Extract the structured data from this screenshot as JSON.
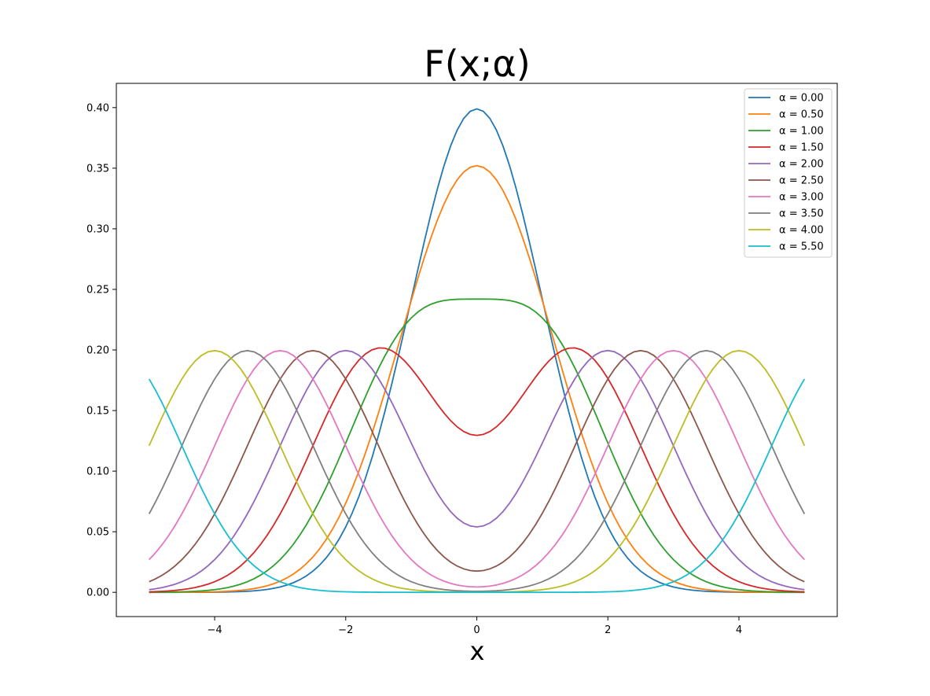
{
  "chart_data": {
    "type": "line",
    "title": "F(x;α)",
    "xlabel": "x",
    "ylabel": "",
    "xlim": [
      -5.5,
      5.5
    ],
    "ylim": [
      -0.02,
      0.42
    ],
    "xticks": [
      -4,
      -2,
      0,
      2,
      4
    ],
    "xtick_labels": [
      "−4",
      "−2",
      "0",
      "2",
      "4"
    ],
    "yticks": [
      0.0,
      0.05,
      0.1,
      0.15,
      0.2,
      0.25,
      0.3,
      0.35,
      0.4
    ],
    "ytick_labels": [
      "0.00",
      "0.05",
      "0.10",
      "0.15",
      "0.20",
      "0.25",
      "0.30",
      "0.35",
      "0.40"
    ],
    "grid": false,
    "legend_position": "top-right",
    "x_range": [
      -5,
      5
    ],
    "series": [
      {
        "name": "α = 0.00",
        "alpha": 0.0,
        "color": "#1f77b4"
      },
      {
        "name": "α = 0.50",
        "alpha": 0.5,
        "color": "#ff7f0e"
      },
      {
        "name": "α = 1.00",
        "alpha": 1.0,
        "color": "#2ca02c"
      },
      {
        "name": "α = 1.50",
        "alpha": 1.5,
        "color": "#d62728"
      },
      {
        "name": "α = 2.00",
        "alpha": 2.0,
        "color": "#9467bd"
      },
      {
        "name": "α = 2.50",
        "alpha": 2.5,
        "color": "#8c564b"
      },
      {
        "name": "α = 3.00",
        "alpha": 3.0,
        "color": "#e377c2"
      },
      {
        "name": "α = 3.50",
        "alpha": 3.5,
        "color": "#7f7f7f"
      },
      {
        "name": "α = 4.00",
        "alpha": 4.0,
        "color": "#bcbd22"
      },
      {
        "name": "α = 5.50",
        "alpha": 5.5,
        "color": "#17becf"
      }
    ]
  }
}
